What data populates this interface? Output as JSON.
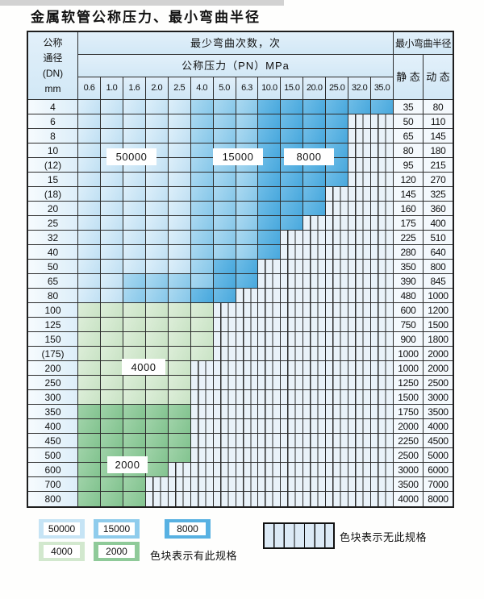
{
  "title": "金属软管公称压力、最小弯曲半径",
  "colors": {
    "cycles_50000": "#c6e4f5",
    "cycles_15000": "#8fccec",
    "cycles_8000": "#58b1e2",
    "cycles_4000": "#d2e8ce",
    "cycles_2000": "#8fca99",
    "no_spec_hatch_bg": "#e9f2f9",
    "header_bg": "#d8ecf8",
    "grid_line": "#2c2c2c"
  },
  "table": {
    "header": {
      "dn_lines": [
        "公称",
        "通径",
        "(DN)",
        "mm"
      ],
      "cycles_label": "最少弯曲次数，次",
      "pressure_label": "公称压力（PN）MPa",
      "pressure_columns": [
        "0.6",
        "1.0",
        "1.6",
        "2.0",
        "2.5",
        "4.0",
        "5.0",
        "6.3",
        "10.0",
        "15.0",
        "20.0",
        "25.0",
        "32.0",
        "35.0"
      ],
      "radius_label": "最小弯曲半径",
      "static_label": "静 态",
      "dynamic_label": "动 态"
    },
    "band_labels": [
      {
        "text": "50000"
      },
      {
        "text": "15000"
      },
      {
        "text": "8000"
      },
      {
        "text": "4000"
      },
      {
        "text": "2000"
      }
    ],
    "rows": [
      {
        "dn": "4",
        "cells": [
          50000,
          50000,
          50000,
          50000,
          50000,
          15000,
          15000,
          15000,
          8000,
          8000,
          8000,
          8000,
          8000,
          8000
        ],
        "static": "35",
        "dynamic": "80"
      },
      {
        "dn": "6",
        "cells": [
          50000,
          50000,
          50000,
          50000,
          50000,
          15000,
          15000,
          15000,
          8000,
          8000,
          8000,
          8000,
          0,
          0
        ],
        "static": "50",
        "dynamic": "110"
      },
      {
        "dn": "8",
        "cells": [
          50000,
          50000,
          50000,
          50000,
          50000,
          15000,
          15000,
          15000,
          8000,
          8000,
          8000,
          8000,
          0,
          0
        ],
        "static": "65",
        "dynamic": "145"
      },
      {
        "dn": "10",
        "cells": [
          50000,
          50000,
          50000,
          50000,
          50000,
          15000,
          15000,
          15000,
          8000,
          8000,
          8000,
          8000,
          0,
          0
        ],
        "static": "80",
        "dynamic": "180"
      },
      {
        "dn": "(12)",
        "cells": [
          50000,
          50000,
          50000,
          50000,
          50000,
          15000,
          15000,
          15000,
          8000,
          8000,
          8000,
          8000,
          0,
          0
        ],
        "static": "95",
        "dynamic": "215"
      },
      {
        "dn": "15",
        "cells": [
          50000,
          50000,
          50000,
          50000,
          50000,
          15000,
          15000,
          15000,
          8000,
          8000,
          8000,
          8000,
          0,
          0
        ],
        "static": "120",
        "dynamic": "270"
      },
      {
        "dn": "(18)",
        "cells": [
          50000,
          50000,
          50000,
          50000,
          50000,
          15000,
          15000,
          15000,
          8000,
          8000,
          8000,
          0,
          0,
          0
        ],
        "static": "145",
        "dynamic": "325"
      },
      {
        "dn": "20",
        "cells": [
          50000,
          50000,
          50000,
          50000,
          50000,
          15000,
          15000,
          15000,
          8000,
          8000,
          8000,
          0,
          0,
          0
        ],
        "static": "160",
        "dynamic": "360"
      },
      {
        "dn": "25",
        "cells": [
          50000,
          50000,
          50000,
          50000,
          50000,
          15000,
          15000,
          15000,
          8000,
          8000,
          0,
          0,
          0,
          0
        ],
        "static": "175",
        "dynamic": "400"
      },
      {
        "dn": "32",
        "cells": [
          50000,
          50000,
          50000,
          50000,
          50000,
          15000,
          15000,
          15000,
          8000,
          0,
          0,
          0,
          0,
          0
        ],
        "static": "225",
        "dynamic": "510"
      },
      {
        "dn": "40",
        "cells": [
          50000,
          50000,
          50000,
          50000,
          50000,
          15000,
          15000,
          15000,
          8000,
          0,
          0,
          0,
          0,
          0
        ],
        "static": "280",
        "dynamic": "640"
      },
      {
        "dn": "50",
        "cells": [
          50000,
          50000,
          50000,
          50000,
          50000,
          15000,
          8000,
          8000,
          0,
          0,
          0,
          0,
          0,
          0
        ],
        "static": "350",
        "dynamic": "800"
      },
      {
        "dn": "65",
        "cells": [
          50000,
          50000,
          15000,
          15000,
          15000,
          15000,
          8000,
          8000,
          0,
          0,
          0,
          0,
          0,
          0
        ],
        "static": "390",
        "dynamic": "845"
      },
      {
        "dn": "80",
        "cells": [
          50000,
          50000,
          15000,
          15000,
          15000,
          8000,
          8000,
          0,
          0,
          0,
          0,
          0,
          0,
          0
        ],
        "static": "480",
        "dynamic": "1000"
      },
      {
        "dn": "100",
        "cells": [
          4000,
          4000,
          4000,
          4000,
          4000,
          4000,
          0,
          0,
          0,
          0,
          0,
          0,
          0,
          0
        ],
        "static": "600",
        "dynamic": "1200"
      },
      {
        "dn": "125",
        "cells": [
          4000,
          4000,
          4000,
          4000,
          4000,
          4000,
          0,
          0,
          0,
          0,
          0,
          0,
          0,
          0
        ],
        "static": "750",
        "dynamic": "1500"
      },
      {
        "dn": "150",
        "cells": [
          4000,
          4000,
          4000,
          4000,
          4000,
          4000,
          0,
          0,
          0,
          0,
          0,
          0,
          0,
          0
        ],
        "static": "900",
        "dynamic": "1800"
      },
      {
        "dn": "(175)",
        "cells": [
          4000,
          4000,
          4000,
          4000,
          4000,
          4000,
          0,
          0,
          0,
          0,
          0,
          0,
          0,
          0
        ],
        "static": "1000",
        "dynamic": "2000"
      },
      {
        "dn": "200",
        "cells": [
          4000,
          4000,
          4000,
          4000,
          4000,
          0,
          0,
          0,
          0,
          0,
          0,
          0,
          0,
          0
        ],
        "static": "1000",
        "dynamic": "2000"
      },
      {
        "dn": "250",
        "cells": [
          4000,
          4000,
          4000,
          4000,
          4000,
          0,
          0,
          0,
          0,
          0,
          0,
          0,
          0,
          0
        ],
        "static": "1250",
        "dynamic": "2500"
      },
      {
        "dn": "300",
        "cells": [
          4000,
          4000,
          4000,
          4000,
          4000,
          0,
          0,
          0,
          0,
          0,
          0,
          0,
          0,
          0
        ],
        "static": "1500",
        "dynamic": "3000"
      },
      {
        "dn": "350",
        "cells": [
          2000,
          2000,
          2000,
          2000,
          2000,
          0,
          0,
          0,
          0,
          0,
          0,
          0,
          0,
          0
        ],
        "static": "1750",
        "dynamic": "3500"
      },
      {
        "dn": "400",
        "cells": [
          2000,
          2000,
          2000,
          2000,
          2000,
          0,
          0,
          0,
          0,
          0,
          0,
          0,
          0,
          0
        ],
        "static": "2000",
        "dynamic": "4000"
      },
      {
        "dn": "450",
        "cells": [
          2000,
          2000,
          2000,
          2000,
          2000,
          0,
          0,
          0,
          0,
          0,
          0,
          0,
          0,
          0
        ],
        "static": "2250",
        "dynamic": "4500"
      },
      {
        "dn": "500",
        "cells": [
          2000,
          2000,
          2000,
          2000,
          2000,
          0,
          0,
          0,
          0,
          0,
          0,
          0,
          0,
          0
        ],
        "static": "2500",
        "dynamic": "5000"
      },
      {
        "dn": "600",
        "cells": [
          2000,
          2000,
          2000,
          2000,
          0,
          0,
          0,
          0,
          0,
          0,
          0,
          0,
          0,
          0
        ],
        "static": "3000",
        "dynamic": "6000"
      },
      {
        "dn": "700",
        "cells": [
          2000,
          2000,
          2000,
          0,
          0,
          0,
          0,
          0,
          0,
          0,
          0,
          0,
          0,
          0
        ],
        "static": "3500",
        "dynamic": "7000"
      },
      {
        "dn": "800",
        "cells": [
          2000,
          2000,
          2000,
          0,
          0,
          0,
          0,
          0,
          0,
          0,
          0,
          0,
          0,
          0
        ],
        "static": "4000",
        "dynamic": "8000"
      }
    ]
  },
  "legend": {
    "items": [
      {
        "label": "50000",
        "cycle": 50000
      },
      {
        "label": "15000",
        "cycle": 15000
      },
      {
        "label": "8000",
        "cycle": 8000
      },
      {
        "label": "4000",
        "cycle": 4000
      },
      {
        "label": "2000",
        "cycle": 2000
      }
    ],
    "has_text": "色块表示有此规格",
    "none_text": "色块表示无此规格"
  }
}
